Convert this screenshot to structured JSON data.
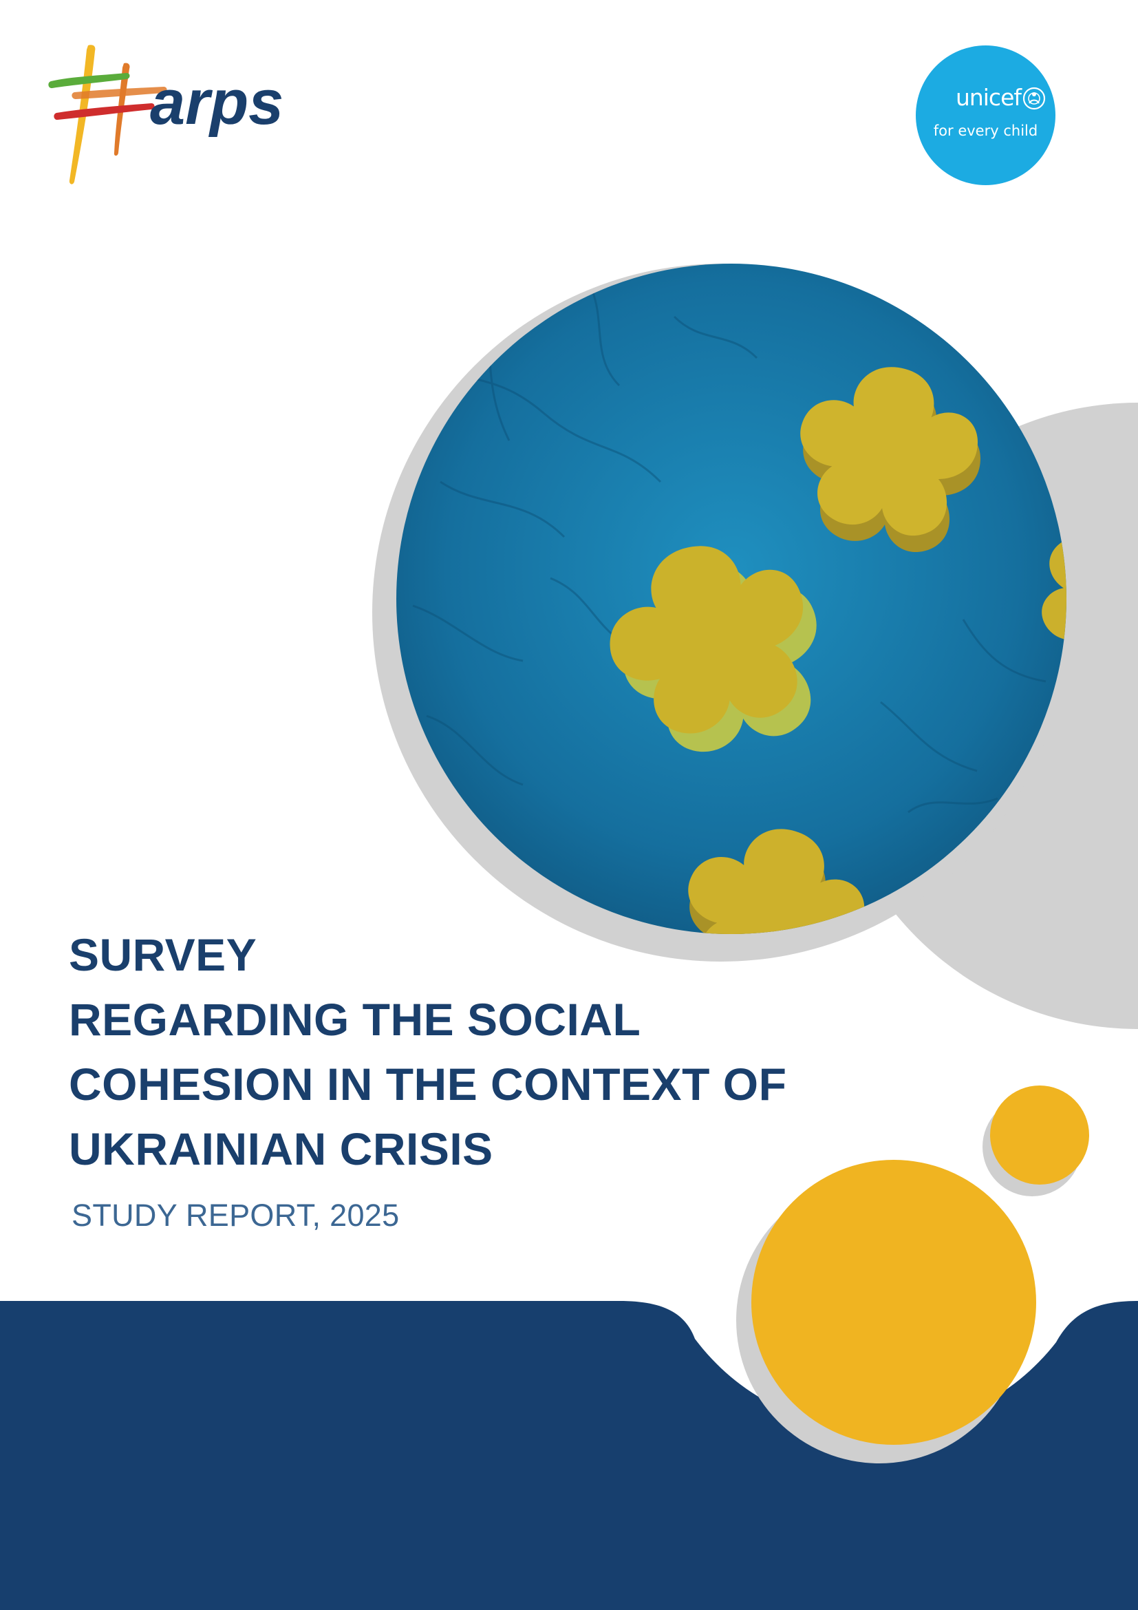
{
  "document": {
    "title_lines": [
      "SURVEY",
      "REGARDING THE SOCIAL",
      "COHESION IN THE CONTEXT OF",
      "UKRAINIAN CRISIS"
    ],
    "subtitle": "STUDY REPORT, 2025"
  },
  "logos": {
    "harps": {
      "wordmark": "arps"
    },
    "unicef": {
      "wordmark": "unicef",
      "tagline": "for every child"
    }
  },
  "colors": {
    "navy": "#173f6e",
    "title_navy": "#1a3f6c",
    "subtitle_blue": "#3c6793",
    "unicef_cyan": "#1cabe2",
    "gold": "#f0b421",
    "photo_blue": "#1579a8",
    "flower_yellow": "#cfb42d",
    "shadow_grey": "#d1d1d1"
  }
}
